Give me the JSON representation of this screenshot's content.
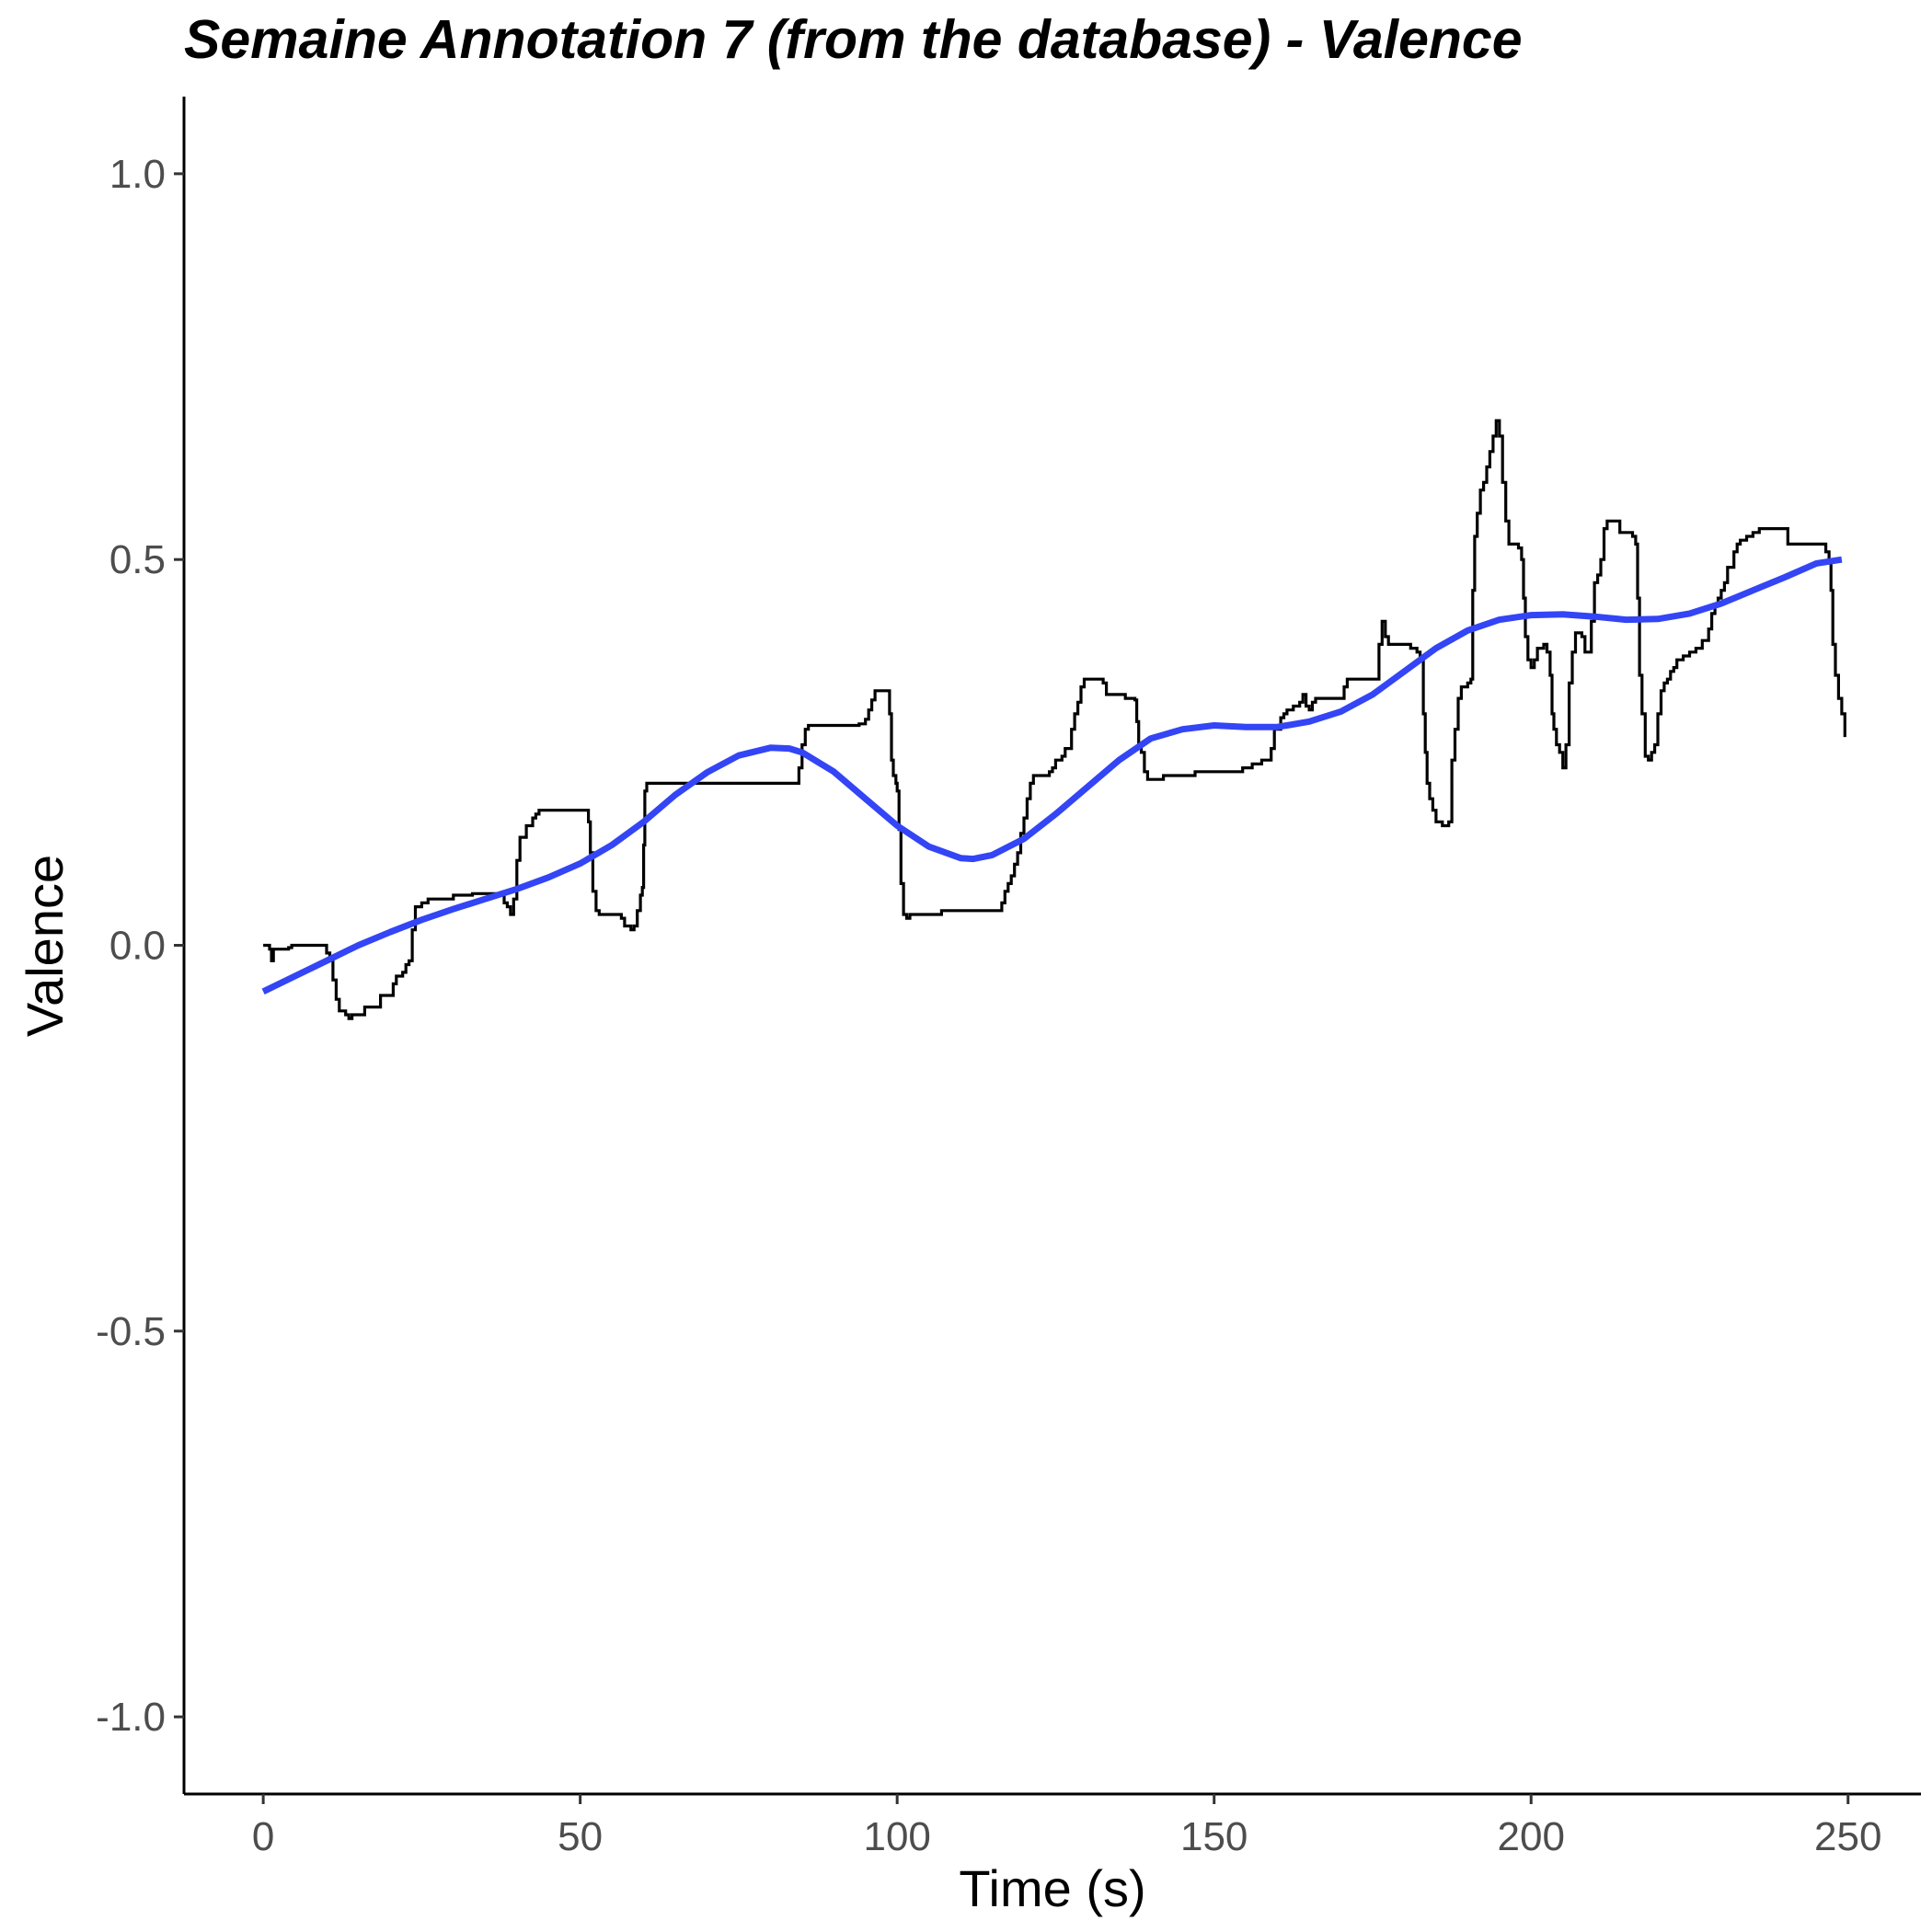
{
  "chart_data": {
    "type": "line",
    "title": "Semaine Annotation 7 (from the database) - Valence",
    "xlabel": "Time (s)",
    "ylabel": "Valence",
    "xlim": [
      -12.5,
      261.5
    ],
    "ylim": [
      -1.1,
      1.1
    ],
    "x_ticks": [
      0,
      50,
      100,
      150,
      200,
      250
    ],
    "y_ticks": [
      1.0,
      0.5,
      0.0,
      -0.5,
      -1.0
    ],
    "x_tick_labels": [
      "0",
      "50",
      "100",
      "150",
      "200",
      "250"
    ],
    "y_tick_labels": [
      "1.0",
      "0.5",
      "0.0",
      "-0.5",
      "-1.0"
    ],
    "grid": false,
    "legend": "none",
    "colors": {
      "annotation": "#000000",
      "smooth": "#3345f5",
      "axis": "#000000",
      "tick_label": "#4d4d4d"
    },
    "series": [
      {
        "kind": "step",
        "points": [
          [
            0,
            0.0
          ],
          [
            0.5,
            0.0
          ],
          [
            1,
            -0.005
          ],
          [
            1.3,
            -0.02
          ],
          [
            1.6,
            -0.005
          ],
          [
            2.5,
            -0.005
          ],
          [
            4,
            -0.003
          ],
          [
            4.5,
            0.0
          ],
          [
            9.5,
            0.0
          ],
          [
            10,
            -0.01
          ],
          [
            10.5,
            -0.02
          ],
          [
            11,
            -0.045
          ],
          [
            11.5,
            -0.07
          ],
          [
            12,
            -0.085
          ],
          [
            13,
            -0.09
          ],
          [
            13.5,
            -0.095
          ],
          [
            14,
            -0.09
          ],
          [
            15.5,
            -0.09
          ],
          [
            16,
            -0.08
          ],
          [
            18,
            -0.08
          ],
          [
            18.5,
            -0.065
          ],
          [
            20,
            -0.065
          ],
          [
            20.5,
            -0.05
          ],
          [
            21,
            -0.04
          ],
          [
            22,
            -0.035
          ],
          [
            22.5,
            -0.025
          ],
          [
            23,
            -0.02
          ],
          [
            23.5,
            0.02
          ],
          [
            24,
            0.05
          ],
          [
            25,
            0.055
          ],
          [
            26,
            0.06
          ],
          [
            30,
            0.065
          ],
          [
            33,
            0.067
          ],
          [
            37,
            0.065
          ],
          [
            38,
            0.055
          ],
          [
            38.5,
            0.05
          ],
          [
            39,
            0.04
          ],
          [
            39.5,
            0.06
          ],
          [
            40,
            0.11
          ],
          [
            40.5,
            0.14
          ],
          [
            41.5,
            0.155
          ],
          [
            42.5,
            0.165
          ],
          [
            43,
            0.17
          ],
          [
            43.5,
            0.175
          ],
          [
            44,
            0.175
          ],
          [
            51,
            0.175
          ],
          [
            51.3,
            0.16
          ],
          [
            51.6,
            0.12
          ],
          [
            52,
            0.07
          ],
          [
            52.5,
            0.045
          ],
          [
            53,
            0.04
          ],
          [
            56,
            0.04
          ],
          [
            56.5,
            0.035
          ],
          [
            57,
            0.025
          ],
          [
            58,
            0.02
          ],
          [
            58.5,
            0.025
          ],
          [
            59,
            0.045
          ],
          [
            59.5,
            0.065
          ],
          [
            59.8,
            0.075
          ],
          [
            60,
            0.13
          ],
          [
            60.2,
            0.2
          ],
          [
            60.5,
            0.21
          ],
          [
            68,
            0.21
          ],
          [
            75,
            0.21
          ],
          [
            84,
            0.21
          ],
          [
            84.5,
            0.23
          ],
          [
            85,
            0.26
          ],
          [
            85.5,
            0.28
          ],
          [
            86,
            0.285
          ],
          [
            91,
            0.285
          ],
          [
            94,
            0.287
          ],
          [
            95,
            0.293
          ],
          [
            95.5,
            0.305
          ],
          [
            96,
            0.318
          ],
          [
            96.5,
            0.33
          ],
          [
            98.5,
            0.33
          ],
          [
            98.8,
            0.3
          ],
          [
            99.1,
            0.24
          ],
          [
            99.4,
            0.22
          ],
          [
            99.8,
            0.21
          ],
          [
            100,
            0.2
          ],
          [
            100.3,
            0.15
          ],
          [
            100.6,
            0.08
          ],
          [
            101,
            0.04
          ],
          [
            101.5,
            0.035
          ],
          [
            102,
            0.04
          ],
          [
            106,
            0.04
          ],
          [
            107,
            0.045
          ],
          [
            116,
            0.045
          ],
          [
            116.5,
            0.055
          ],
          [
            117,
            0.07
          ],
          [
            117.5,
            0.08
          ],
          [
            118,
            0.09
          ],
          [
            118.5,
            0.105
          ],
          [
            119,
            0.12
          ],
          [
            119.5,
            0.145
          ],
          [
            120,
            0.165
          ],
          [
            120.5,
            0.19
          ],
          [
            121,
            0.21
          ],
          [
            121.5,
            0.22
          ],
          [
            123.5,
            0.22
          ],
          [
            124,
            0.225
          ],
          [
            124.5,
            0.23
          ],
          [
            125,
            0.24
          ],
          [
            126,
            0.245
          ],
          [
            126.5,
            0.255
          ],
          [
            127,
            0.255
          ],
          [
            127.5,
            0.28
          ],
          [
            128,
            0.3
          ],
          [
            128.5,
            0.315
          ],
          [
            129,
            0.335
          ],
          [
            129.5,
            0.345
          ],
          [
            131,
            0.345
          ],
          [
            132.5,
            0.34
          ],
          [
            133,
            0.325
          ],
          [
            136,
            0.32
          ],
          [
            137.5,
            0.318
          ],
          [
            137.8,
            0.29
          ],
          [
            138.1,
            0.26
          ],
          [
            138.5,
            0.25
          ],
          [
            139,
            0.225
          ],
          [
            139.5,
            0.215
          ],
          [
            141,
            0.215
          ],
          [
            142,
            0.22
          ],
          [
            146.5,
            0.22
          ],
          [
            147,
            0.225
          ],
          [
            151,
            0.225
          ],
          [
            154,
            0.225
          ],
          [
            154.5,
            0.23
          ],
          [
            156,
            0.235
          ],
          [
            157,
            0.235
          ],
          [
            157.5,
            0.24
          ],
          [
            158.5,
            0.24
          ],
          [
            159,
            0.255
          ],
          [
            159.5,
            0.28
          ],
          [
            160.5,
            0.295
          ],
          [
            161,
            0.3
          ],
          [
            161.5,
            0.305
          ],
          [
            162.5,
            0.31
          ],
          [
            163.5,
            0.315
          ],
          [
            164,
            0.325
          ],
          [
            164.5,
            0.31
          ],
          [
            165,
            0.305
          ],
          [
            165.5,
            0.315
          ],
          [
            166,
            0.32
          ],
          [
            168,
            0.32
          ],
          [
            170,
            0.32
          ],
          [
            170.5,
            0.335
          ],
          [
            171,
            0.345
          ],
          [
            173,
            0.345
          ],
          [
            175.5,
            0.345
          ],
          [
            176,
            0.39
          ],
          [
            176.5,
            0.42
          ],
          [
            177,
            0.4
          ],
          [
            177.5,
            0.39
          ],
          [
            179,
            0.39
          ],
          [
            181,
            0.385
          ],
          [
            182,
            0.38
          ],
          [
            182.5,
            0.37
          ],
          [
            183,
            0.3
          ],
          [
            183.3,
            0.25
          ],
          [
            183.6,
            0.21
          ],
          [
            184,
            0.19
          ],
          [
            184.5,
            0.175
          ],
          [
            185,
            0.16
          ],
          [
            186,
            0.155
          ],
          [
            187,
            0.16
          ],
          [
            187.5,
            0.24
          ],
          [
            188,
            0.28
          ],
          [
            188.5,
            0.32
          ],
          [
            189,
            0.335
          ],
          [
            190,
            0.34
          ],
          [
            190.5,
            0.345
          ],
          [
            190.8,
            0.46
          ],
          [
            191.1,
            0.53
          ],
          [
            191.5,
            0.56
          ],
          [
            192,
            0.59
          ],
          [
            192.5,
            0.6
          ],
          [
            193,
            0.62
          ],
          [
            193.5,
            0.64
          ],
          [
            194,
            0.66
          ],
          [
            194.5,
            0.68
          ],
          [
            195,
            0.66
          ],
          [
            195.5,
            0.6
          ],
          [
            196,
            0.55
          ],
          [
            196.5,
            0.52
          ],
          [
            198,
            0.515
          ],
          [
            198.5,
            0.5
          ],
          [
            198.8,
            0.45
          ],
          [
            199.1,
            0.4
          ],
          [
            199.5,
            0.37
          ],
          [
            200,
            0.36
          ],
          [
            200.5,
            0.37
          ],
          [
            201,
            0.385
          ],
          [
            202,
            0.39
          ],
          [
            202.5,
            0.38
          ],
          [
            203,
            0.35
          ],
          [
            203.3,
            0.3
          ],
          [
            203.6,
            0.28
          ],
          [
            204,
            0.26
          ],
          [
            204.5,
            0.25
          ],
          [
            205,
            0.23
          ],
          [
            205.5,
            0.26
          ],
          [
            206,
            0.34
          ],
          [
            206.5,
            0.38
          ],
          [
            207,
            0.405
          ],
          [
            208,
            0.4
          ],
          [
            208.5,
            0.38
          ],
          [
            209,
            0.38
          ],
          [
            209.5,
            0.42
          ],
          [
            210,
            0.47
          ],
          [
            210.5,
            0.48
          ],
          [
            211,
            0.5
          ],
          [
            211.5,
            0.54
          ],
          [
            212,
            0.55
          ],
          [
            213.5,
            0.55
          ],
          [
            214,
            0.535
          ],
          [
            216,
            0.53
          ],
          [
            216.5,
            0.52
          ],
          [
            216.8,
            0.45
          ],
          [
            217.1,
            0.35
          ],
          [
            217.5,
            0.3
          ],
          [
            218,
            0.245
          ],
          [
            218.5,
            0.24
          ],
          [
            219,
            0.25
          ],
          [
            219.5,
            0.26
          ],
          [
            220,
            0.3
          ],
          [
            220.5,
            0.33
          ],
          [
            221,
            0.34
          ],
          [
            221.5,
            0.345
          ],
          [
            222,
            0.355
          ],
          [
            222.5,
            0.36
          ],
          [
            223,
            0.37
          ],
          [
            224,
            0.375
          ],
          [
            225,
            0.38
          ],
          [
            226,
            0.385
          ],
          [
            227,
            0.395
          ],
          [
            228,
            0.41
          ],
          [
            228.5,
            0.43
          ],
          [
            229,
            0.44
          ],
          [
            229.5,
            0.45
          ],
          [
            230,
            0.46
          ],
          [
            230.5,
            0.47
          ],
          [
            231,
            0.49
          ],
          [
            232,
            0.51
          ],
          [
            232.5,
            0.52
          ],
          [
            233,
            0.525
          ],
          [
            234,
            0.53
          ],
          [
            235,
            0.535
          ],
          [
            236,
            0.54
          ],
          [
            240,
            0.54
          ],
          [
            240.5,
            0.52
          ],
          [
            246,
            0.52
          ],
          [
            246.5,
            0.51
          ],
          [
            247,
            0.5
          ],
          [
            247.3,
            0.46
          ],
          [
            247.6,
            0.39
          ],
          [
            248,
            0.35
          ],
          [
            248.5,
            0.32
          ],
          [
            249,
            0.3
          ],
          [
            249.5,
            0.27
          ]
        ]
      },
      {
        "kind": "smooth",
        "points": [
          [
            0,
            -0.06
          ],
          [
            5,
            -0.04
          ],
          [
            10,
            -0.02
          ],
          [
            15,
            0.0
          ],
          [
            20,
            0.017
          ],
          [
            25,
            0.033
          ],
          [
            30,
            0.047
          ],
          [
            35,
            0.06
          ],
          [
            40,
            0.073
          ],
          [
            45,
            0.088
          ],
          [
            50,
            0.106
          ],
          [
            55,
            0.13
          ],
          [
            60,
            0.16
          ],
          [
            65,
            0.195
          ],
          [
            70,
            0.224
          ],
          [
            75,
            0.246
          ],
          [
            80,
            0.256
          ],
          [
            83,
            0.255
          ],
          [
            85,
            0.25
          ],
          [
            90,
            0.225
          ],
          [
            95,
            0.19
          ],
          [
            100,
            0.155
          ],
          [
            105,
            0.128
          ],
          [
            110,
            0.113
          ],
          [
            112,
            0.112
          ],
          [
            115,
            0.117
          ],
          [
            120,
            0.138
          ],
          [
            125,
            0.17
          ],
          [
            130,
            0.205
          ],
          [
            135,
            0.24
          ],
          [
            140,
            0.268
          ],
          [
            145,
            0.28
          ],
          [
            150,
            0.285
          ],
          [
            155,
            0.283
          ],
          [
            160,
            0.283
          ],
          [
            165,
            0.29
          ],
          [
            170,
            0.303
          ],
          [
            175,
            0.325
          ],
          [
            180,
            0.355
          ],
          [
            185,
            0.385
          ],
          [
            190,
            0.408
          ],
          [
            195,
            0.422
          ],
          [
            200,
            0.428
          ],
          [
            205,
            0.429
          ],
          [
            210,
            0.426
          ],
          [
            215,
            0.422
          ],
          [
            220,
            0.423
          ],
          [
            225,
            0.43
          ],
          [
            230,
            0.443
          ],
          [
            235,
            0.46
          ],
          [
            240,
            0.477
          ],
          [
            245,
            0.495
          ],
          [
            249,
            0.5
          ]
        ]
      }
    ]
  }
}
